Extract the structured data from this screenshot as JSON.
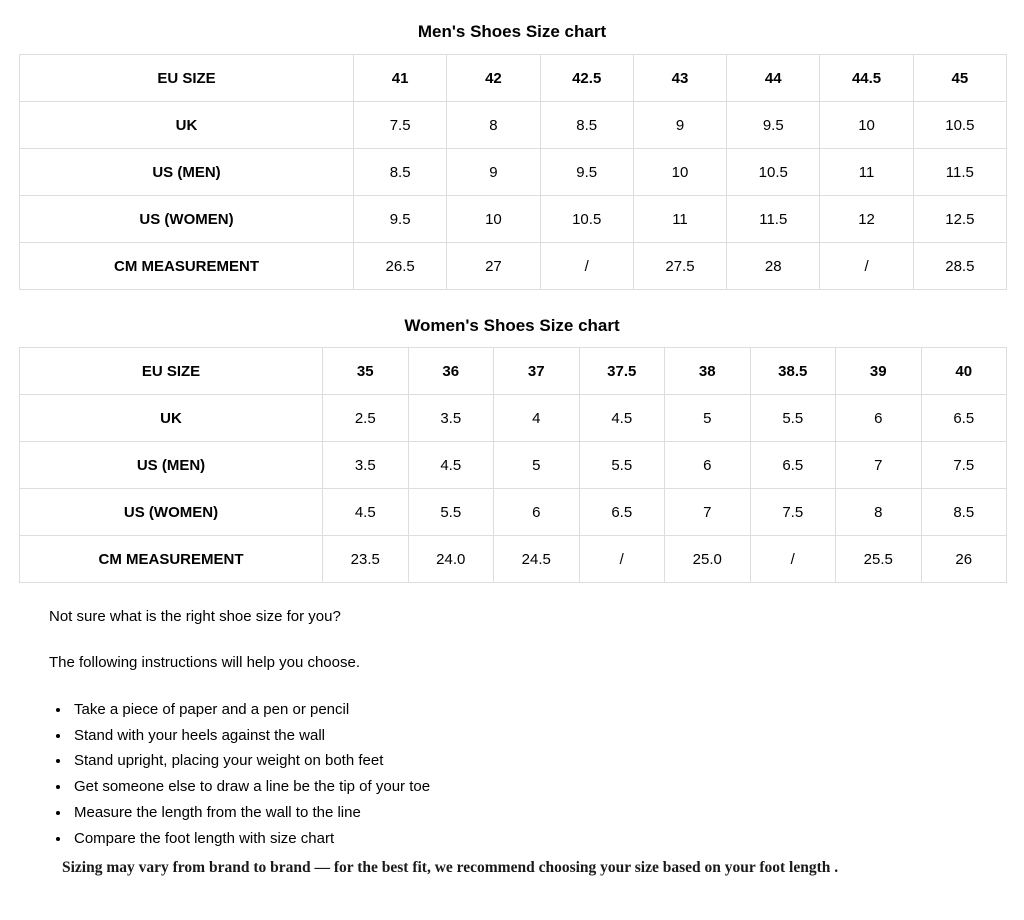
{
  "mens_chart": {
    "title": "Men's Shoes Size chart",
    "rows": [
      {
        "label": "EU SIZE",
        "header": true,
        "values": [
          "41",
          "42",
          "42.5",
          "43",
          "44",
          "44.5",
          "45"
        ]
      },
      {
        "label": "UK",
        "header": false,
        "values": [
          "7.5",
          "8",
          "8.5",
          "9",
          "9.5",
          "10",
          "10.5"
        ]
      },
      {
        "label": "US (MEN)",
        "header": false,
        "values": [
          "8.5",
          "9",
          "9.5",
          "10",
          "10.5",
          "11",
          "11.5"
        ]
      },
      {
        "label": "US (WOMEN)",
        "header": false,
        "values": [
          "9.5",
          "10",
          "10.5",
          "11",
          "11.5",
          "12",
          "12.5"
        ]
      },
      {
        "label": "CM MEASUREMENT",
        "header": false,
        "values": [
          "26.5",
          "27",
          "/",
          "27.5",
          "28",
          "/",
          "28.5"
        ]
      }
    ]
  },
  "womens_chart": {
    "title": "Women's Shoes Size chart",
    "rows": [
      {
        "label": "EU SIZE",
        "header": true,
        "values": [
          "35",
          "36",
          "37",
          "37.5",
          "38",
          "38.5",
          "39",
          "40"
        ]
      },
      {
        "label": "UK",
        "header": false,
        "values": [
          "2.5",
          "3.5",
          "4",
          "4.5",
          "5",
          "5.5",
          "6",
          "6.5"
        ]
      },
      {
        "label": "US (MEN)",
        "header": false,
        "values": [
          "3.5",
          "4.5",
          "5",
          "5.5",
          "6",
          "6.5",
          "7",
          "7.5"
        ]
      },
      {
        "label": "US (WOMEN)",
        "header": false,
        "values": [
          "4.5",
          "5.5",
          "6",
          "6.5",
          "7",
          "7.5",
          "8",
          "8.5"
        ]
      },
      {
        "label": "CM MEASUREMENT",
        "header": false,
        "values": [
          "23.5",
          "24.0",
          "24.5",
          "/",
          "25.0",
          "/",
          "25.5",
          "26"
        ]
      }
    ]
  },
  "intro": {
    "question": "Not sure what is the right shoe size for you?",
    "lead": "The following instructions will help you choose."
  },
  "instructions": [
    "Take a piece of paper and a pen or pencil",
    "Stand with your heels against the wall",
    "Stand upright, placing your weight on both feet",
    "Get someone else to draw a line be the tip of your toe",
    "Measure the length from the wall to the line",
    "Compare the foot length with size chart"
  ],
  "note": "Sizing may vary from brand to brand — for the best fit, we recommend choosing your size based on your foot length .",
  "colors": {
    "table_border": "#dddddd",
    "text": "#000000",
    "background": "#ffffff"
  }
}
